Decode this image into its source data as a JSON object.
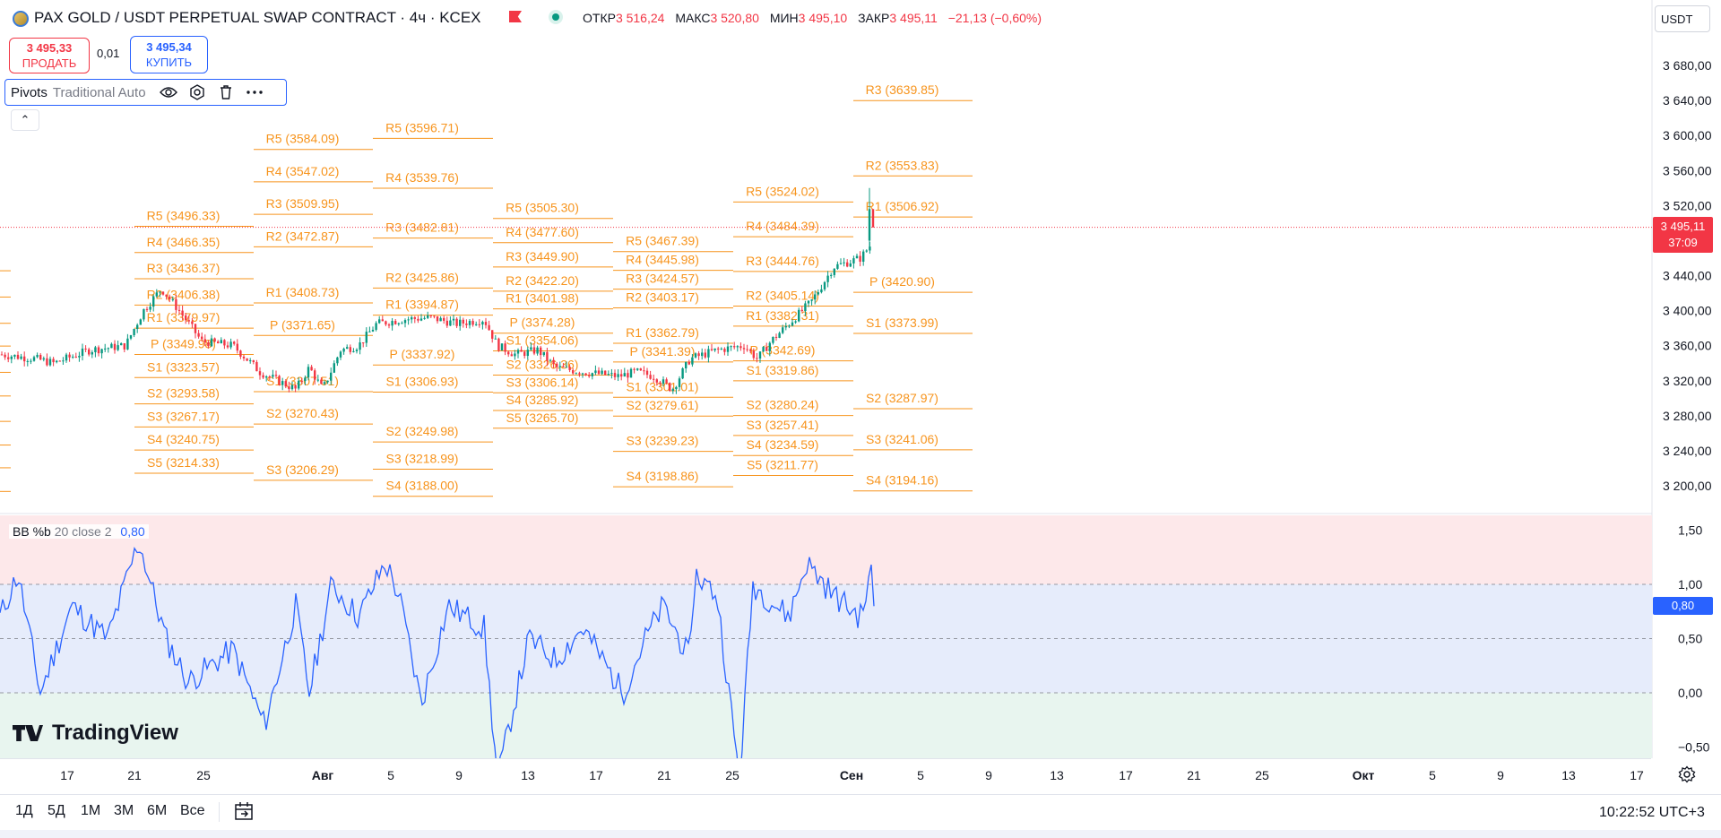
{
  "header": {
    "title": "PAX GOLD / USDT PERPETUAL SWAP CONTRACT · 4ч · KCEX",
    "ohlc": [
      {
        "label": "ОТКР",
        "value": "3 516,24"
      },
      {
        "label": "МАКС",
        "value": "3 520,80"
      },
      {
        "label": "МИН",
        "value": "3 495,10"
      },
      {
        "label": "ЗАКР",
        "value": "3 495,11"
      }
    ],
    "change": "−21,13 (−0,60%)",
    "currency": "USDT"
  },
  "trade": {
    "sell_price": "3 495,33",
    "sell_label": "ПРОДАТЬ",
    "spread": "0,01",
    "buy_price": "3 495,34",
    "buy_label": "КУПИТЬ"
  },
  "pivots_legend": {
    "name": "Pivots",
    "args": "Traditional Auto"
  },
  "price_axis": {
    "ticks": [
      "3 680,00",
      "3 640,00",
      "3 600,00",
      "3 560,00",
      "3 520,00",
      "3 440,00",
      "3 400,00",
      "3 360,00",
      "3 320,00",
      "3 280,00",
      "3 240,00",
      "3 200,00"
    ],
    "last_price": "3 495,11",
    "countdown": "37:09"
  },
  "bb": {
    "legend_name": "BB %b",
    "legend_args": "20 close 2",
    "legend_value": "0,80",
    "last_value": "0,80",
    "axis_ticks": [
      "1,50",
      "1,00",
      "0,50",
      "0,00",
      "−0,50"
    ]
  },
  "pivot_groups": [
    {
      "levels": [
        [
          "R5",
          "3496.33"
        ],
        [
          "R4",
          "3466.35"
        ],
        [
          "R3",
          "3436.37"
        ],
        [
          "R2",
          "3406.38"
        ],
        [
          "R1",
          "3379.97"
        ],
        [
          "P",
          "3349.98"
        ],
        [
          "S1",
          "3323.57"
        ],
        [
          "S2",
          "3293.58"
        ],
        [
          "S3",
          "3267.17"
        ],
        [
          "S4",
          "3240.75"
        ],
        [
          "S5",
          "3214.33"
        ]
      ]
    },
    {
      "levels": [
        [
          "R5",
          "3584.09"
        ],
        [
          "R4",
          "3547.02"
        ],
        [
          "R3",
          "3509.95"
        ],
        [
          "R2",
          "3472.87"
        ],
        [
          "R1",
          "3408.73"
        ],
        [
          "P",
          "3371.65"
        ],
        [
          "S1",
          "3307.51"
        ],
        [
          "S2",
          "3270.43"
        ],
        [
          "S3",
          "3206.29"
        ]
      ]
    },
    {
      "levels": [
        [
          "R5",
          "3596.71"
        ],
        [
          "R4",
          "3539.76"
        ],
        [
          "R3",
          "3482.81"
        ],
        [
          "R2",
          "3425.86"
        ],
        [
          "R1",
          "3394.87"
        ],
        [
          "P",
          "3337.92"
        ],
        [
          "S1",
          "3306.93"
        ],
        [
          "S2",
          "3249.98"
        ],
        [
          "S3",
          "3218.99"
        ],
        [
          "S4",
          "3188.00"
        ]
      ]
    },
    {
      "levels": [
        [
          "R5",
          "3505.30"
        ],
        [
          "R4",
          "3477.60"
        ],
        [
          "R3",
          "3449.90"
        ],
        [
          "R2",
          "3422.20"
        ],
        [
          "R1",
          "3401.98"
        ],
        [
          "P",
          "3374.28"
        ],
        [
          "S1",
          "3354.06"
        ],
        [
          "S2",
          "3326.36"
        ],
        [
          "S3",
          "3306.14"
        ],
        [
          "S4",
          "3285.92"
        ],
        [
          "S5",
          "3265.70"
        ]
      ]
    },
    {
      "levels": [
        [
          "R5",
          "3467.39"
        ],
        [
          "R4",
          "3445.98"
        ],
        [
          "R3",
          "3424.57"
        ],
        [
          "R2",
          "3403.17"
        ],
        [
          "R1",
          "3362.79"
        ],
        [
          "P",
          "3341.39"
        ],
        [
          "S1",
          "3301.01"
        ],
        [
          "S2",
          "3279.61"
        ],
        [
          "S3",
          "3239.23"
        ],
        [
          "S4",
          "3198.86"
        ]
      ]
    },
    {
      "levels": [
        [
          "R5",
          "3524.02"
        ],
        [
          "R4",
          "3484.39"
        ],
        [
          "R3",
          "3444.76"
        ],
        [
          "R2",
          "3405.14"
        ],
        [
          "R1",
          "3382.31"
        ],
        [
          "P",
          "3342.69"
        ],
        [
          "S1",
          "3319.86"
        ],
        [
          "S2",
          "3280.24"
        ],
        [
          "S3",
          "3257.41"
        ],
        [
          "S4",
          "3234.59"
        ],
        [
          "S5",
          "3211.77"
        ]
      ]
    },
    {
      "levels": [
        [
          "R3",
          "3639.85"
        ],
        [
          "R2",
          "3553.83"
        ],
        [
          "R1",
          "3506.92"
        ],
        [
          "P",
          "3420.90"
        ],
        [
          "S1",
          "3373.99"
        ],
        [
          "S2",
          "3287.97"
        ],
        [
          "S3",
          "3241.06"
        ],
        [
          "S4",
          "3194.16"
        ]
      ]
    }
  ],
  "x_axis": {
    "ticks": [
      {
        "label": "17",
        "bold": false
      },
      {
        "label": "21",
        "bold": false
      },
      {
        "label": "25",
        "bold": false
      },
      {
        "label": "Авг",
        "bold": true
      },
      {
        "label": "5",
        "bold": false
      },
      {
        "label": "9",
        "bold": false
      },
      {
        "label": "13",
        "bold": false
      },
      {
        "label": "17",
        "bold": false
      },
      {
        "label": "21",
        "bold": false
      },
      {
        "label": "25",
        "bold": false
      },
      {
        "label": "Сен",
        "bold": true
      },
      {
        "label": "5",
        "bold": false
      },
      {
        "label": "9",
        "bold": false
      },
      {
        "label": "13",
        "bold": false
      },
      {
        "label": "17",
        "bold": false
      },
      {
        "label": "21",
        "bold": false
      },
      {
        "label": "25",
        "bold": false
      },
      {
        "label": "Окт",
        "bold": true
      },
      {
        "label": "5",
        "bold": false
      },
      {
        "label": "9",
        "bold": false
      },
      {
        "label": "13",
        "bold": false
      },
      {
        "label": "17",
        "bold": false
      }
    ]
  },
  "bottom_bar": {
    "ranges": [
      "1Д",
      "5Д",
      "1М",
      "3М",
      "6М",
      "Все"
    ],
    "time": "10:22:52 UTC+3"
  },
  "logo": "TradingView",
  "colors": {
    "pivot": "#f7941d",
    "up": "#089981",
    "down": "#f23645",
    "bb_line": "#2962ff",
    "upper_band": "#fde8ea",
    "mid_band": "#e6ecfb",
    "lower_band": "#e8f5ef"
  },
  "icons": {
    "visibility": "eye-icon",
    "settings": "settings-icon",
    "delete": "trash-icon",
    "more": "more-icon",
    "collapse": "chevron-up-icon",
    "chart_settings": "gear-icon",
    "goto_date": "calendar-icon"
  }
}
